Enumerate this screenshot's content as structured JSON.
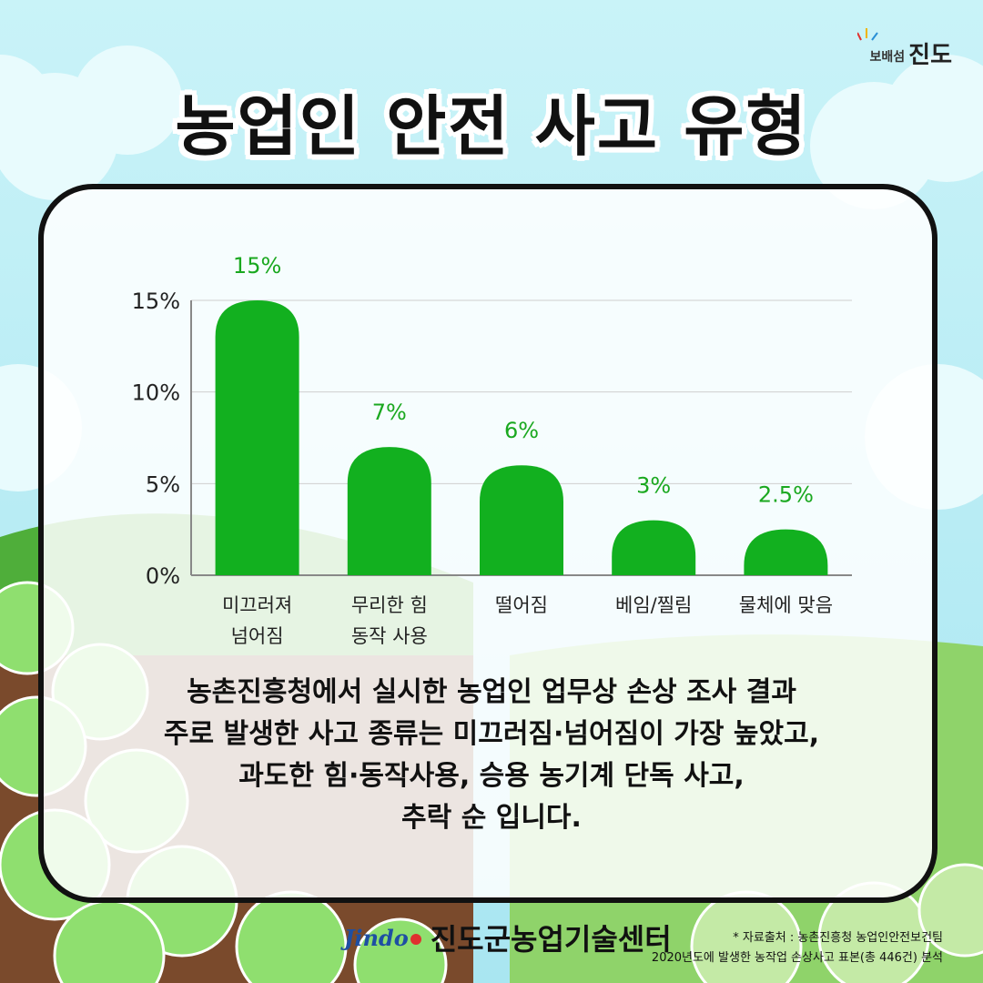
{
  "header": {
    "title": "농업인 안전 사고 유형",
    "brand_small": "보배섬",
    "brand_large": "진도"
  },
  "chart_data": {
    "type": "bar",
    "categories": [
      [
        "미끄러져",
        "넘어짐"
      ],
      [
        "무리한 힘",
        "동작 사용"
      ],
      [
        "떨어짐"
      ],
      [
        "베임/찔림"
      ],
      [
        "물체에 맞음"
      ]
    ],
    "values": [
      15,
      7,
      6,
      3,
      2.5
    ],
    "data_labels": [
      "15%",
      "7%",
      "6%",
      "3%",
      "2.5%"
    ],
    "y_ticks": [
      0,
      5,
      10,
      15
    ],
    "y_tick_labels": [
      "0%",
      "5%",
      "10%",
      "15%"
    ],
    "ylim": [
      0,
      15
    ],
    "grid": true,
    "bar_color": "#12b01f",
    "label_color": "#1aa81f"
  },
  "description": [
    "농촌진흥청에서 실시한 농업인 업무상 손상 조사 결과",
    "주로 발생한 사고 종류는 미끄러짐·넘어짐이 가장 높았고,",
    "과도한 힘·동작사용, 승용 농기계 단독 사고,",
    "추락 순 입니다."
  ],
  "footer": {
    "logo_text": "Jindo",
    "org_name": "진도군농업기술센터",
    "source_line1": "* 자료출처 : 농촌진흥청 농업인안전보건팀",
    "source_line2": "2020년도에 발생한 농작업 손상사고 표본(총 446건) 분석"
  }
}
